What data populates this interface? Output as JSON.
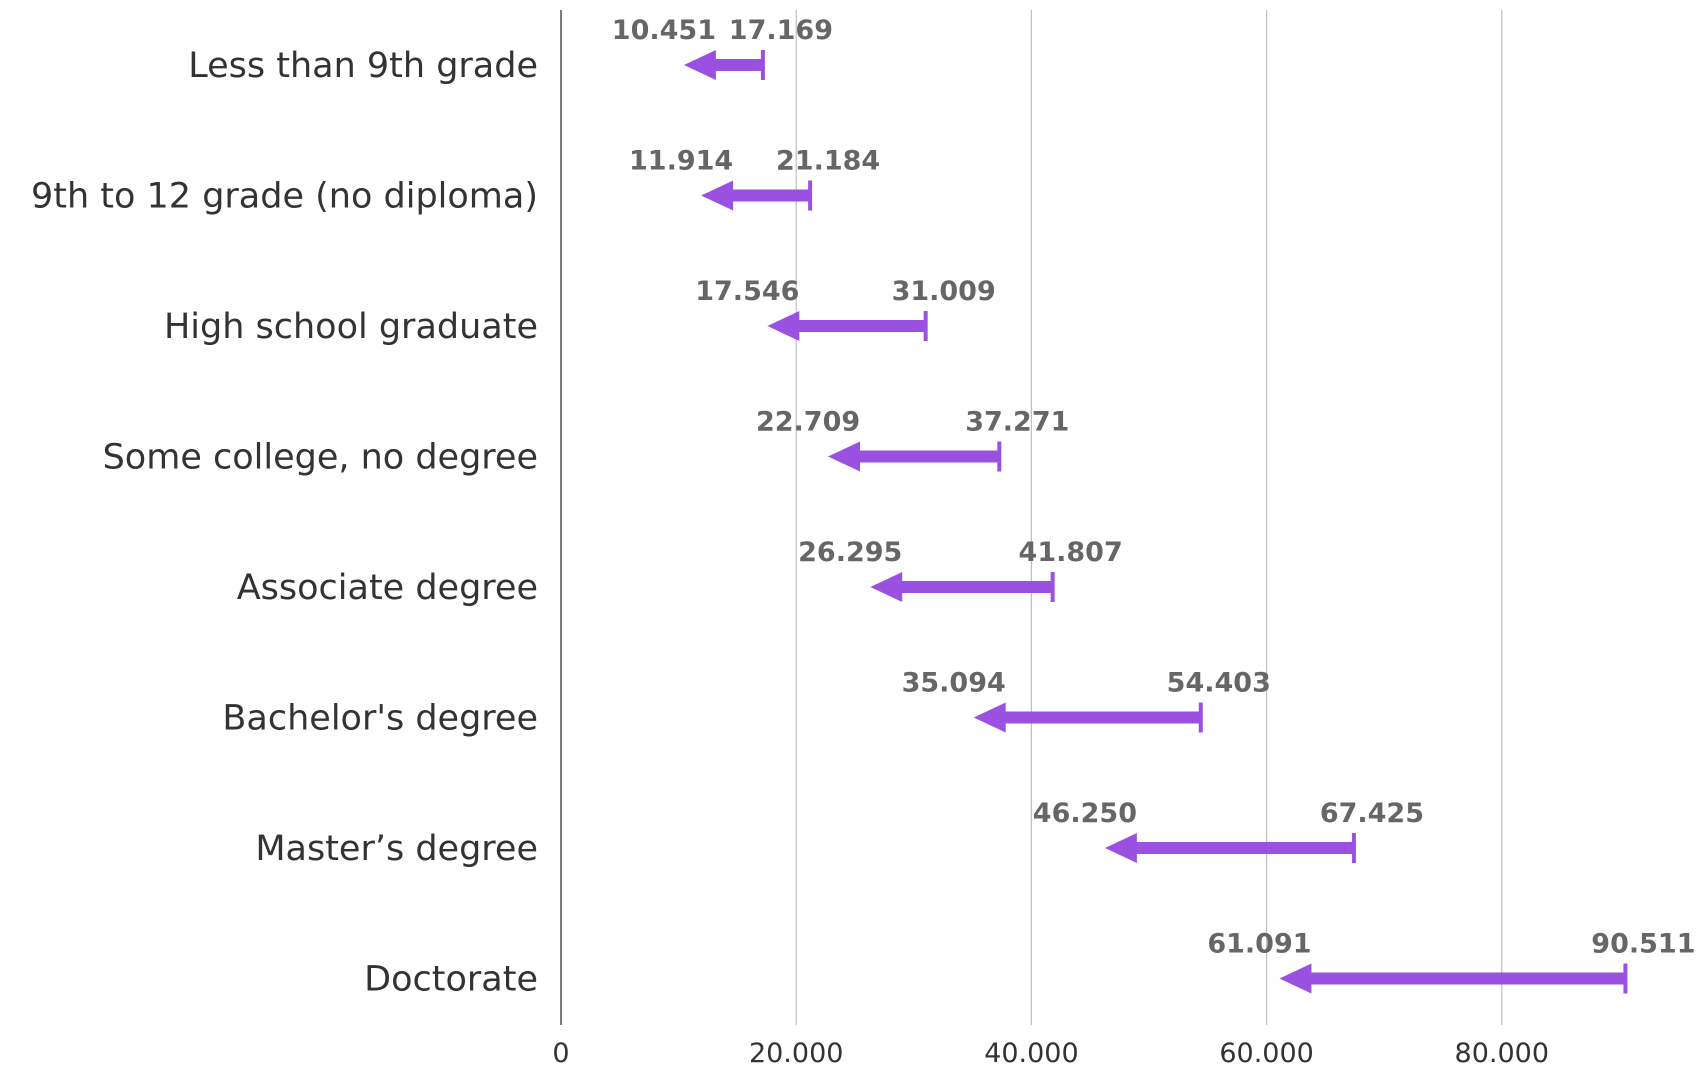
{
  "chart_data": {
    "type": "bar",
    "title": "",
    "xlabel": "",
    "ylabel": "",
    "categories": [
      "Less than 9th grade",
      "9th to 12 grade (no diploma)",
      "High school graduate",
      "Some college, no degree",
      "Associate degree",
      "Bachelor's degree",
      "Master’s degree",
      "Doctorate"
    ],
    "series": [
      {
        "start": [
          17.169,
          21.184,
          31.009,
          37.271,
          41.807,
          54.403,
          67.425,
          90.511
        ],
        "end": [
          10.451,
          11.914,
          17.546,
          22.709,
          26.295,
          35.094,
          46.25,
          61.091
        ]
      }
    ],
    "start_labels": [
      "17.169",
      "21.184",
      "31.009",
      "37.271",
      "41.807",
      "54.403",
      "67.425",
      "90.511"
    ],
    "end_labels": [
      "10.451",
      "11.914",
      "17.546",
      "22.709",
      "26.295",
      "35.094",
      "46.250",
      "61.091"
    ],
    "xlim": [
      0,
      90.511
    ],
    "xticks": [
      0,
      20,
      40,
      60,
      80
    ],
    "xtick_labels": [
      "0",
      "20.000",
      "40.000",
      "60.000",
      "80.000"
    ],
    "grid": true,
    "colors": {
      "arrow": "#9B51E0",
      "grid": "#BFBFBF",
      "axis": "#595959",
      "value_text": "#666666",
      "category_text": "#333333"
    }
  }
}
